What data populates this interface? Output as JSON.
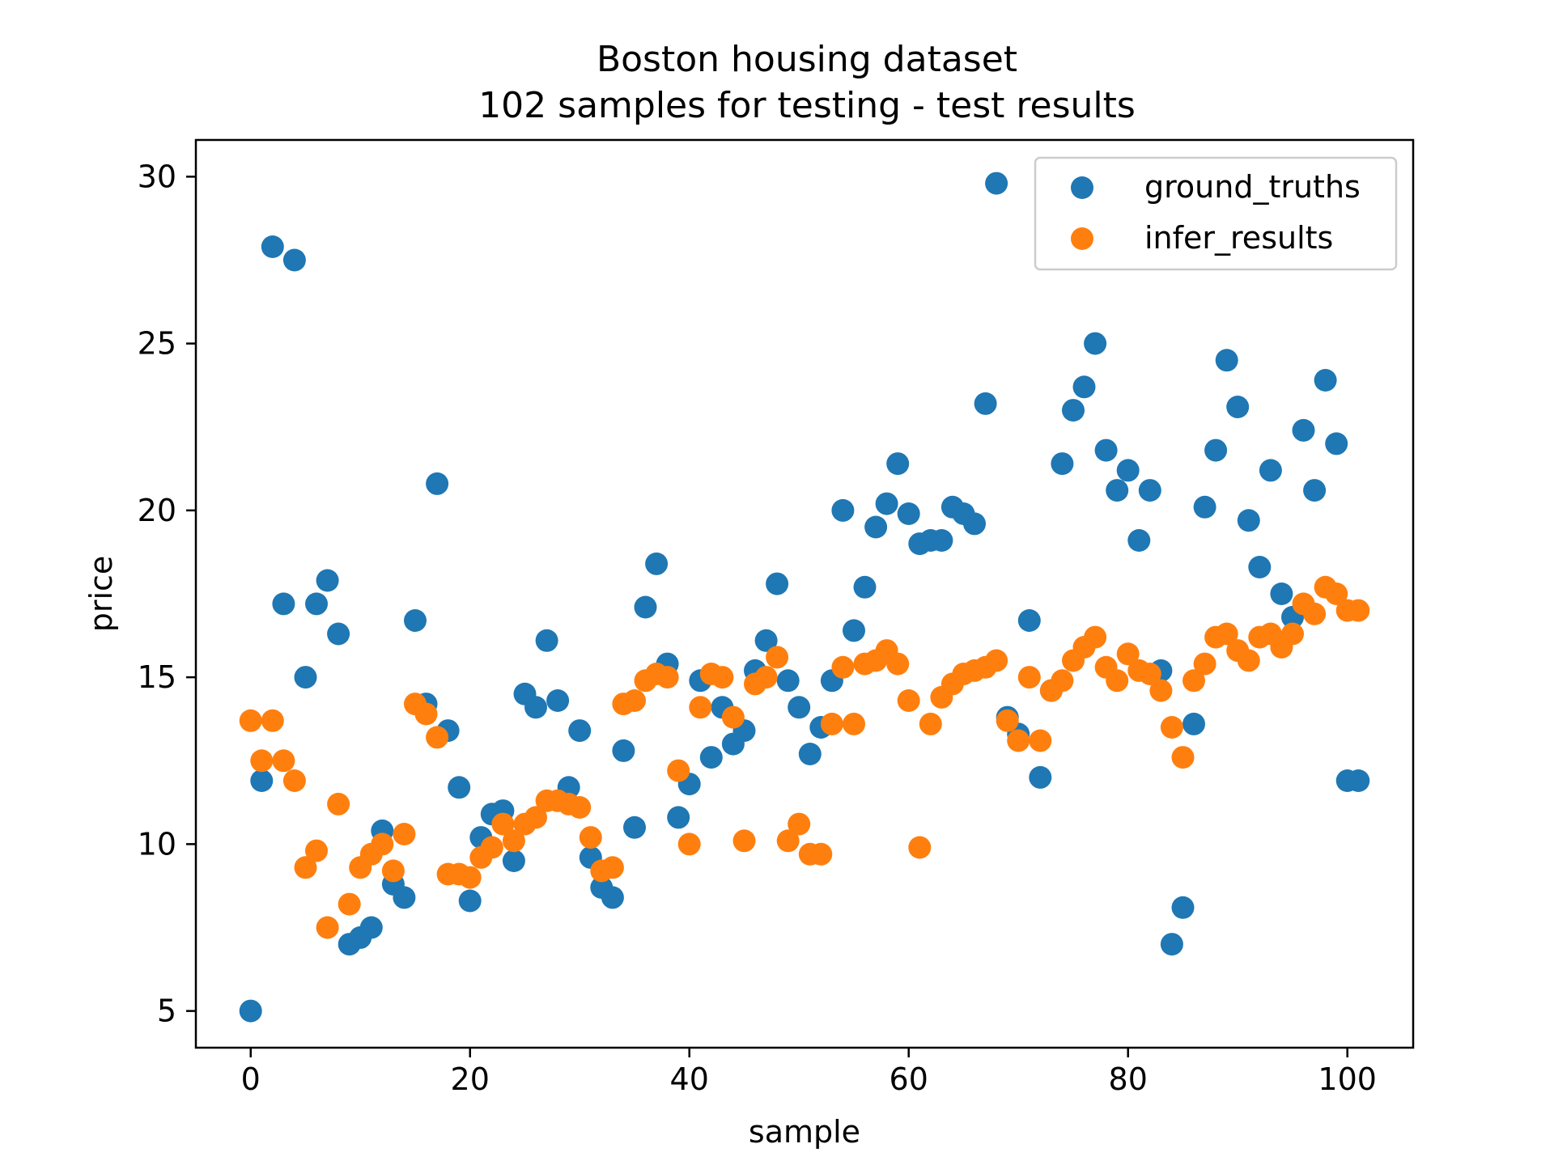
{
  "chart_data": {
    "type": "scatter",
    "title": "Boston housing dataset",
    "subtitle": "102 samples for testing - test results",
    "xlabel": "sample",
    "ylabel": "price",
    "xlim": [
      -5,
      106
    ],
    "ylim": [
      3.9,
      31.1
    ],
    "xticks": [
      0,
      20,
      40,
      60,
      80,
      100
    ],
    "yticks": [
      5,
      10,
      15,
      20,
      25,
      30
    ],
    "grid": false,
    "legend_position": "top-right",
    "series": [
      {
        "name": "ground_truths",
        "color": "#1f77b4",
        "values": [
          5.0,
          11.9,
          27.9,
          17.2,
          27.5,
          15.0,
          17.2,
          17.9,
          16.3,
          7.0,
          7.2,
          7.5,
          10.4,
          8.8,
          8.4,
          16.7,
          14.2,
          20.8,
          13.4,
          11.7,
          8.3,
          10.2,
          10.9,
          11.0,
          9.5,
          14.5,
          14.1,
          16.1,
          14.3,
          11.7,
          13.4,
          9.6,
          8.7,
          8.4,
          12.8,
          10.5,
          17.1,
          18.4,
          15.4,
          10.8,
          11.8,
          14.9,
          12.6,
          14.1,
          13.0,
          13.4,
          15.2,
          16.1,
          17.8,
          14.9,
          14.1,
          12.7,
          13.5,
          14.9,
          20.0,
          16.4,
          17.7,
          19.5,
          20.2,
          21.4,
          19.9,
          19.0,
          19.1,
          19.1,
          20.1,
          19.9,
          19.6,
          23.2,
          29.8,
          13.8,
          13.3,
          16.7,
          12.0,
          14.6,
          21.4,
          23.0,
          23.7,
          25.0,
          21.8,
          20.6,
          21.2,
          19.1,
          20.6,
          15.2,
          7.0,
          8.1,
          13.6,
          20.1,
          21.8,
          24.5,
          23.1,
          19.7,
          18.3,
          21.2,
          17.5,
          16.8,
          22.4,
          20.6,
          23.9,
          22.0,
          11.9,
          11.9
        ]
      },
      {
        "name": "infer_results",
        "color": "#ff7f0e",
        "values": [
          13.7,
          12.5,
          13.7,
          12.5,
          11.9,
          9.3,
          9.8,
          7.5,
          11.2,
          8.2,
          9.3,
          9.7,
          10.0,
          9.2,
          10.3,
          14.2,
          13.9,
          13.2,
          9.1,
          9.1,
          9.0,
          9.6,
          9.9,
          10.6,
          10.1,
          10.6,
          10.8,
          11.3,
          11.3,
          11.2,
          11.1,
          10.2,
          9.2,
          9.3,
          14.2,
          14.3,
          14.9,
          15.1,
          15.0,
          12.2,
          10.0,
          14.1,
          15.1,
          15.0,
          13.8,
          10.1,
          14.8,
          15.0,
          15.6,
          10.1,
          10.6,
          9.7,
          9.7,
          13.6,
          15.3,
          13.6,
          15.4,
          15.5,
          15.8,
          15.4,
          14.3,
          9.9,
          13.6,
          14.4,
          14.8,
          15.1,
          15.2,
          15.3,
          15.5,
          13.7,
          13.1,
          15.0,
          13.1,
          14.6,
          14.9,
          15.5,
          15.9,
          16.2,
          15.3,
          14.9,
          15.7,
          15.2,
          15.1,
          14.6,
          13.5,
          12.6,
          14.9,
          15.4,
          16.2,
          16.3,
          15.8,
          15.5,
          16.2,
          16.3,
          15.9,
          16.3,
          17.2,
          16.9,
          17.7,
          17.5,
          17.0,
          17.0
        ]
      }
    ]
  }
}
